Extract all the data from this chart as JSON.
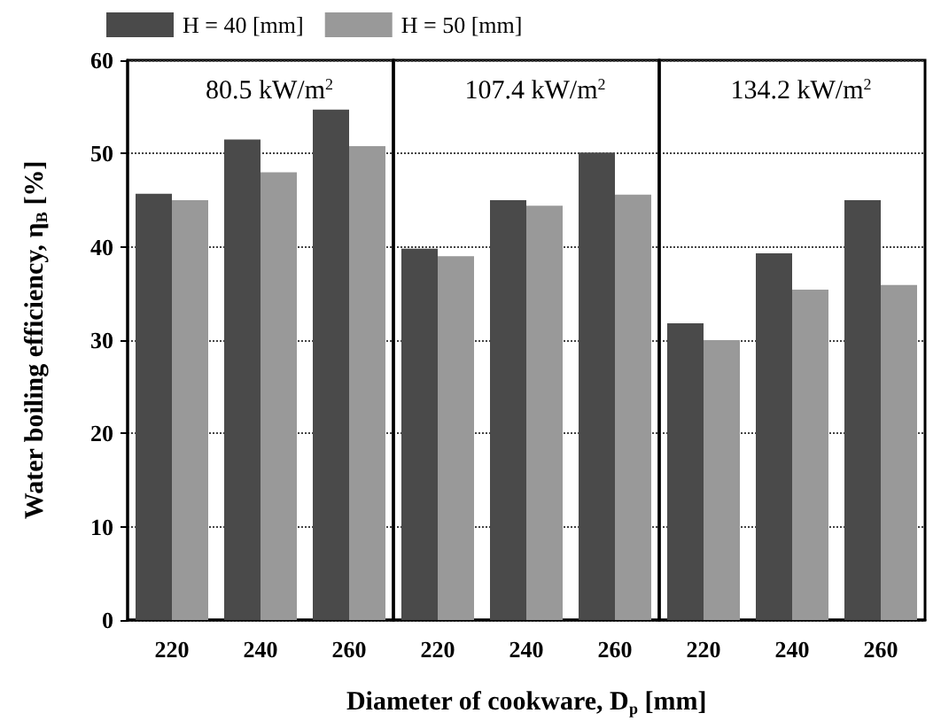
{
  "chart_data": [
    {
      "type": "bar",
      "title": "80.5 kW/m$^{2}$",
      "ylabel": "Water boiling efficiency, η$_{B}$ [%]",
      "categories": [
        "220",
        "240",
        "260"
      ],
      "ylim": [
        0,
        60
      ],
      "yticks": [
        0,
        10,
        20,
        30,
        40,
        50,
        60
      ],
      "grid": "y",
      "series": [
        {
          "color": "#4a4a4a",
          "values": [
            45.7,
            51.5,
            54.7
          ]
        },
        {
          "color": "#999999",
          "values": [
            45.0,
            48.0,
            50.8
          ]
        }
      ]
    },
    {
      "type": "bar",
      "title": "107.4 kW/m$^{2}$",
      "xlabel": "Diameter of cookware, D$_{p}$ [mm]",
      "categories": [
        "220",
        "240",
        "260"
      ],
      "ylim": [
        0,
        60
      ],
      "yticks": [
        0,
        10,
        20,
        30,
        40,
        50,
        60
      ],
      "grid": "y",
      "tick_labels": "x",
      "legend": "top left",
      "series": [
        {
          "name": "H = 40 [mm]",
          "color": "#4a4a4a",
          "values": [
            39.8,
            45.0,
            50.1
          ]
        },
        {
          "name": "H = 50 [mm]",
          "color": "#999999",
          "values": [
            39.0,
            44.4,
            45.6
          ]
        }
      ]
    },
    {
      "type": "bar",
      "title": "134.2 kW/m$^{2}$",
      "categories": [
        "220",
        "240",
        "260"
      ],
      "ylim": [
        0,
        60
      ],
      "yticks": [
        0,
        10,
        20,
        30,
        40,
        50,
        60
      ],
      "grid": "y",
      "tick_labels": "x",
      "series": [
        {
          "color": "#4a4a4a",
          "values": [
            31.8,
            39.3,
            45.0
          ]
        },
        {
          "color": "#999999",
          "values": [
            30.0,
            35.4,
            35.9
          ]
        }
      ]
    }
  ]
}
